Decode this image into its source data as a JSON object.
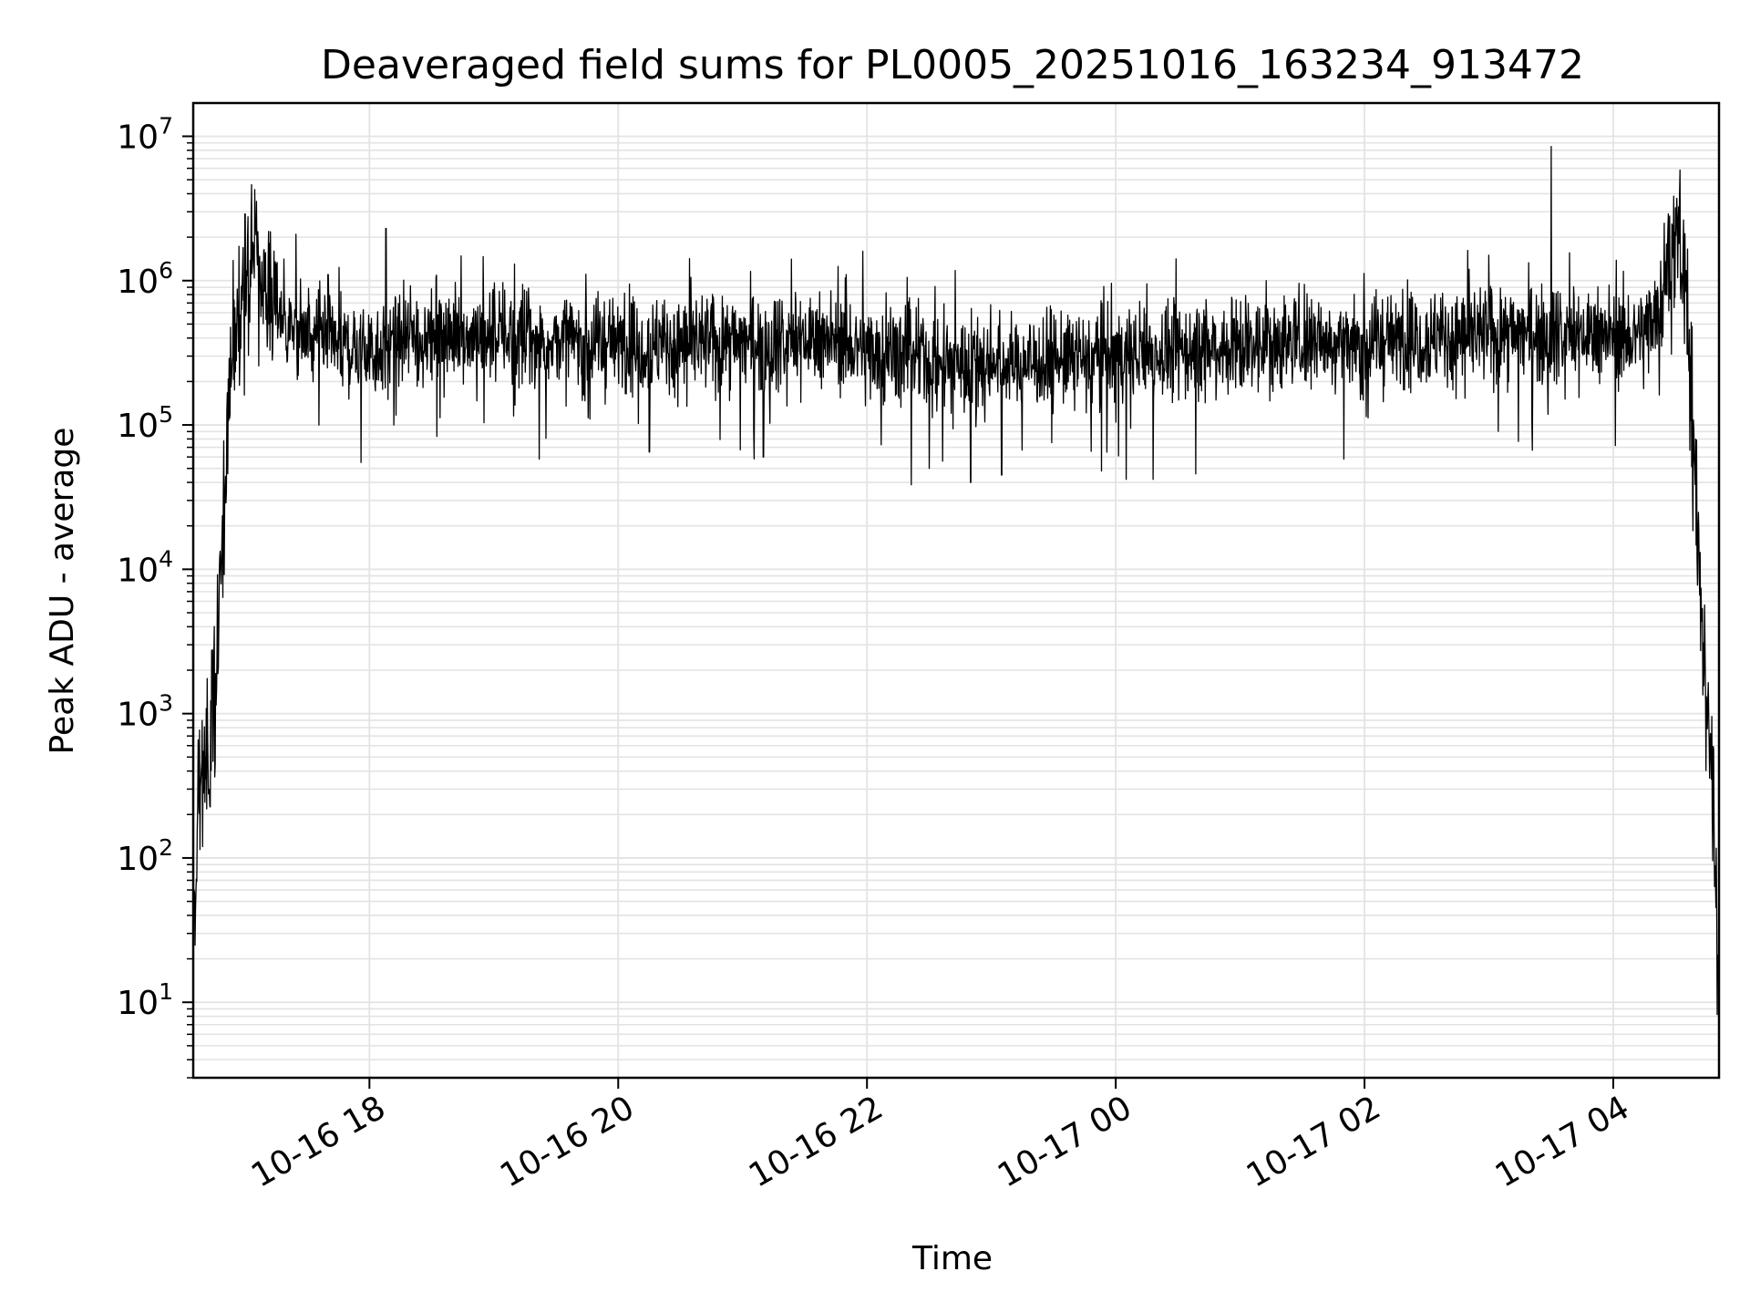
{
  "chart_data": {
    "type": "line",
    "title": "Deaveraged field sums for PL0005_20251016_163234_913472",
    "xlabel": "Time",
    "ylabel": "Peak ADU - average",
    "yscale": "log",
    "ylim": [
      3,
      17000000
    ],
    "xlim": [
      "2025-10-16 16:35",
      "2025-10-17 04:51"
    ],
    "grid": true,
    "line_color": "#000000",
    "grid_color": "#e3e3e3",
    "x_ticks": [
      {
        "value": "2025-10-16 18:00",
        "label": "10-16 18"
      },
      {
        "value": "2025-10-16 20:00",
        "label": "10-16 20"
      },
      {
        "value": "2025-10-16 22:00",
        "label": "10-16 22"
      },
      {
        "value": "2025-10-17 00:00",
        "label": "10-17 00"
      },
      {
        "value": "2025-10-17 02:00",
        "label": "10-17 02"
      },
      {
        "value": "2025-10-17 04:00",
        "label": "10-17 04"
      }
    ],
    "y_ticks": [
      {
        "value": 10,
        "base": "10",
        "exp": "1"
      },
      {
        "value": 100,
        "base": "10",
        "exp": "2"
      },
      {
        "value": 1000,
        "base": "10",
        "exp": "3"
      },
      {
        "value": 10000,
        "base": "10",
        "exp": "4"
      },
      {
        "value": 100000,
        "base": "10",
        "exp": "5"
      },
      {
        "value": 1000000,
        "base": "10",
        "exp": "6"
      },
      {
        "value": 10000000,
        "base": "10",
        "exp": "7"
      }
    ],
    "series": [
      {
        "x": [
          "2025-10-16 16:35",
          "2025-10-16 16:38",
          "2025-10-16 16:42",
          "2025-10-16 16:46",
          "2025-10-16 16:50",
          "2025-10-16 16:54",
          "2025-10-16 16:58",
          "2025-10-16 17:02",
          "2025-10-16 17:06",
          "2025-10-16 17:10",
          "2025-10-16 17:15",
          "2025-10-16 17:20",
          "2025-10-16 17:30",
          "2025-10-16 17:45",
          "2025-10-16 18:00",
          "2025-10-16 18:15",
          "2025-10-16 18:30",
          "2025-10-16 18:45",
          "2025-10-16 19:00",
          "2025-10-16 19:30",
          "2025-10-16 20:00",
          "2025-10-16 20:30",
          "2025-10-16 21:00",
          "2025-10-16 21:30",
          "2025-10-16 22:00",
          "2025-10-16 22:30",
          "2025-10-16 23:00",
          "2025-10-16 23:30",
          "2025-10-17 00:00",
          "2025-10-17 00:30",
          "2025-10-17 01:00",
          "2025-10-17 01:30",
          "2025-10-17 02:00",
          "2025-10-17 02:30",
          "2025-10-17 03:00",
          "2025-10-17 03:30",
          "2025-10-17 03:50",
          "2025-10-17 04:05",
          "2025-10-17 04:15",
          "2025-10-17 04:22",
          "2025-10-17 04:28",
          "2025-10-17 04:32",
          "2025-10-17 04:36",
          "2025-10-17 04:40",
          "2025-10-17 04:44",
          "2025-10-17 04:48",
          "2025-10-17 04:51"
        ],
        "y": [
          20,
          300,
          500,
          1500,
          30000,
          300000,
          1000000,
          1200000,
          1500000,
          900000,
          700000,
          500000,
          400000,
          350000,
          330000,
          380000,
          400000,
          420000,
          430000,
          380000,
          370000,
          360000,
          380000,
          400000,
          340000,
          280000,
          270000,
          280000,
          300000,
          330000,
          360000,
          390000,
          380000,
          400000,
          420000,
          450000,
          420000,
          400000,
          450000,
          700000,
          1500000,
          1800000,
          400000,
          30000,
          2000,
          300,
          10
        ],
        "spikes": [
          {
            "x": "2025-10-16 17:00",
            "y": 2900000
          },
          {
            "x": "2025-10-16 17:05",
            "y": 2400000
          },
          {
            "x": "2025-10-16 17:40",
            "y": 1100000
          },
          {
            "x": "2025-10-16 17:56",
            "y": 55000
          },
          {
            "x": "2025-10-16 18:08",
            "y": 2300000
          },
          {
            "x": "2025-10-16 19:10",
            "y": 1300000
          },
          {
            "x": "2025-10-16 20:15",
            "y": 65000
          },
          {
            "x": "2025-10-16 21:10",
            "y": 60000
          },
          {
            "x": "2025-10-16 21:50",
            "y": 1100000
          },
          {
            "x": "2025-10-16 21:58",
            "y": 1600000
          },
          {
            "x": "2025-10-16 22:30",
            "y": 50000
          },
          {
            "x": "2025-10-16 22:50",
            "y": 40000
          },
          {
            "x": "2025-10-16 23:05",
            "y": 45000
          },
          {
            "x": "2025-10-17 00:05",
            "y": 42000
          },
          {
            "x": "2025-10-17 00:15",
            "y": 950000
          },
          {
            "x": "2025-10-17 00:18",
            "y": 42000
          },
          {
            "x": "2025-10-17 01:50",
            "y": 58000
          },
          {
            "x": "2025-10-17 02:25",
            "y": 650000
          },
          {
            "x": "2025-10-17 03:00",
            "y": 1500000
          },
          {
            "x": "2025-10-17 03:30",
            "y": 8500000
          },
          {
            "x": "2025-10-17 04:01",
            "y": 72000
          },
          {
            "x": "2025-10-17 04:38",
            "y": 480000
          }
        ]
      }
    ]
  }
}
